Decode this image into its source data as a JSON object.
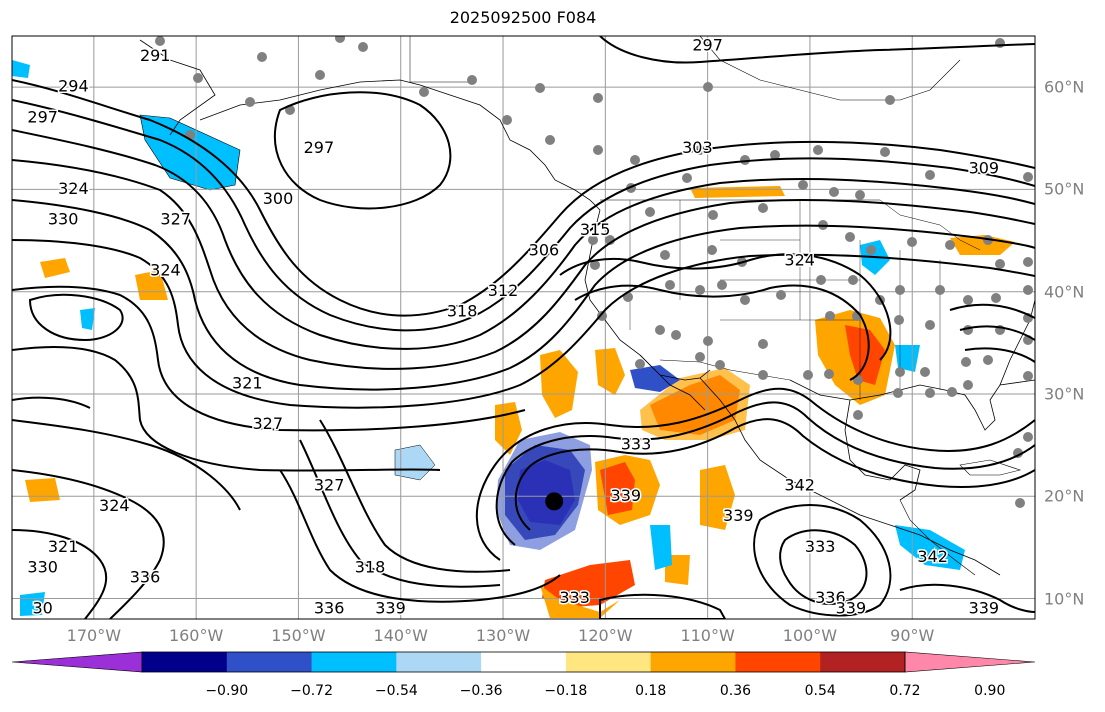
{
  "title": "2025092500 F084",
  "map": {
    "lon_labels": [
      {
        "text": "170°W",
        "lon": -170
      },
      {
        "text": "160°W",
        "lon": -160
      },
      {
        "text": "150°W",
        "lon": -150
      },
      {
        "text": "140°W",
        "lon": -140
      },
      {
        "text": "130°W",
        "lon": -130
      },
      {
        "text": "120°W",
        "lon": -120
      },
      {
        "text": "110°W",
        "lon": -110
      },
      {
        "text": "100°W",
        "lon": -100
      },
      {
        "text": "90°W",
        "lon": -90
      }
    ],
    "lat_labels": [
      {
        "text": "60°N",
        "lat": 60
      },
      {
        "text": "50°N",
        "lat": 50
      },
      {
        "text": "40°N",
        "lat": 40
      },
      {
        "text": "30°N",
        "lat": 30
      },
      {
        "text": "20°N",
        "lat": 20
      },
      {
        "text": "10°N",
        "lat": 10
      }
    ],
    "extent": {
      "lon_min": -178,
      "lon_max": -78,
      "lat_min": 8,
      "lat_max": 65
    },
    "grid": true,
    "contour_labels": [
      {
        "text": "291",
        "lon": -164,
        "lat": 63
      },
      {
        "text": "294",
        "lon": -172,
        "lat": 60
      },
      {
        "text": "297",
        "lon": -175,
        "lat": 57
      },
      {
        "text": "297",
        "lon": -148,
        "lat": 54
      },
      {
        "text": "297",
        "lon": -110,
        "lat": 64
      },
      {
        "text": "300",
        "lon": -152,
        "lat": 49
      },
      {
        "text": "303",
        "lon": -111,
        "lat": 54
      },
      {
        "text": "306",
        "lon": -126,
        "lat": 44
      },
      {
        "text": "309",
        "lon": -83,
        "lat": 52
      },
      {
        "text": "312",
        "lon": -130,
        "lat": 40
      },
      {
        "text": "315",
        "lon": -121,
        "lat": 46
      },
      {
        "text": "318",
        "lon": -134,
        "lat": 38
      },
      {
        "text": "318",
        "lon": -143,
        "lat": 13
      },
      {
        "text": "321",
        "lon": -155,
        "lat": 31
      },
      {
        "text": "321",
        "lon": -173,
        "lat": 15
      },
      {
        "text": "324",
        "lon": -172,
        "lat": 50
      },
      {
        "text": "324",
        "lon": -163,
        "lat": 42
      },
      {
        "text": "324",
        "lon": -101,
        "lat": 43
      },
      {
        "text": "324",
        "lon": -168,
        "lat": 19
      },
      {
        "text": "327",
        "lon": -162,
        "lat": 47
      },
      {
        "text": "327",
        "lon": -153,
        "lat": 27
      },
      {
        "text": "327",
        "lon": -147,
        "lat": 21
      },
      {
        "text": "330",
        "lon": -173,
        "lat": 47
      },
      {
        "text": "330",
        "lon": -175,
        "lat": 13
      },
      {
        "text": "333",
        "lon": -117,
        "lat": 25
      },
      {
        "text": "333",
        "lon": -123,
        "lat": 10
      },
      {
        "text": "333",
        "lon": -99,
        "lat": 15
      },
      {
        "text": "336",
        "lon": -165,
        "lat": 12
      },
      {
        "text": "336",
        "lon": -147,
        "lat": 9
      },
      {
        "text": "336",
        "lon": -98,
        "lat": 10
      },
      {
        "text": "339",
        "lon": -141,
        "lat": 9
      },
      {
        "text": "339",
        "lon": -118,
        "lat": 20
      },
      {
        "text": "339",
        "lon": -107,
        "lat": 18
      },
      {
        "text": "339",
        "lon": -96,
        "lat": 9
      },
      {
        "text": "339",
        "lon": -83,
        "lat": 9
      },
      {
        "text": "342",
        "lon": -101,
        "lat": 21
      },
      {
        "text": "342",
        "lon": -88,
        "lat": 14
      },
      {
        "text": "30",
        "lon": -175,
        "lat": 9
      }
    ],
    "storm_center": {
      "lon": -125,
      "lat": 19.5
    }
  },
  "colorbar": {
    "colors": [
      "#9b30d9",
      "#00008b",
      "#3050c8",
      "#00bfff",
      "#add8f5",
      "#ffffff",
      "#ffe680",
      "#ffa500",
      "#ff4500",
      "#b22222",
      "#ff88aa"
    ],
    "ticks": [
      "−0.90",
      "−0.72",
      "−0.54",
      "−0.36",
      "−0.18",
      "0.18",
      "0.36",
      "0.54",
      "0.72",
      "0.90"
    ]
  }
}
